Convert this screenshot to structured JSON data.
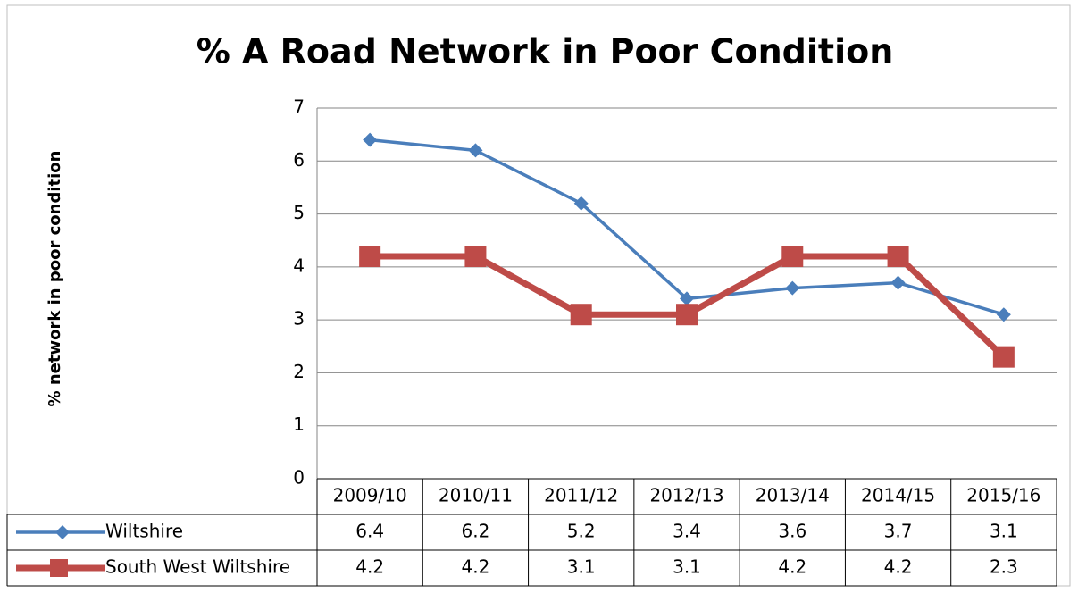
{
  "chart_data": {
    "type": "line",
    "title": "% A Road Network in Poor Condition",
    "y_label": "% network in poor condition",
    "categories": [
      "2009/10",
      "2010/11",
      "2011/12",
      "2012/13",
      "2013/14",
      "2014/15",
      "2015/16"
    ],
    "series": [
      {
        "name": "Wiltshire",
        "color": "#4a7ebb",
        "marker": "diamond",
        "values": [
          6.4,
          6.2,
          5.2,
          3.4,
          3.6,
          3.7,
          3.1
        ]
      },
      {
        "name": "South West Wiltshire",
        "color": "#be4b48",
        "marker": "square",
        "values": [
          4.2,
          4.2,
          3.1,
          3.1,
          4.2,
          4.2,
          2.3
        ]
      }
    ],
    "ylim": [
      0,
      7
    ],
    "yticks": [
      0,
      1,
      2,
      3,
      4,
      5,
      6,
      7
    ],
    "grid": true,
    "data_table": true
  }
}
